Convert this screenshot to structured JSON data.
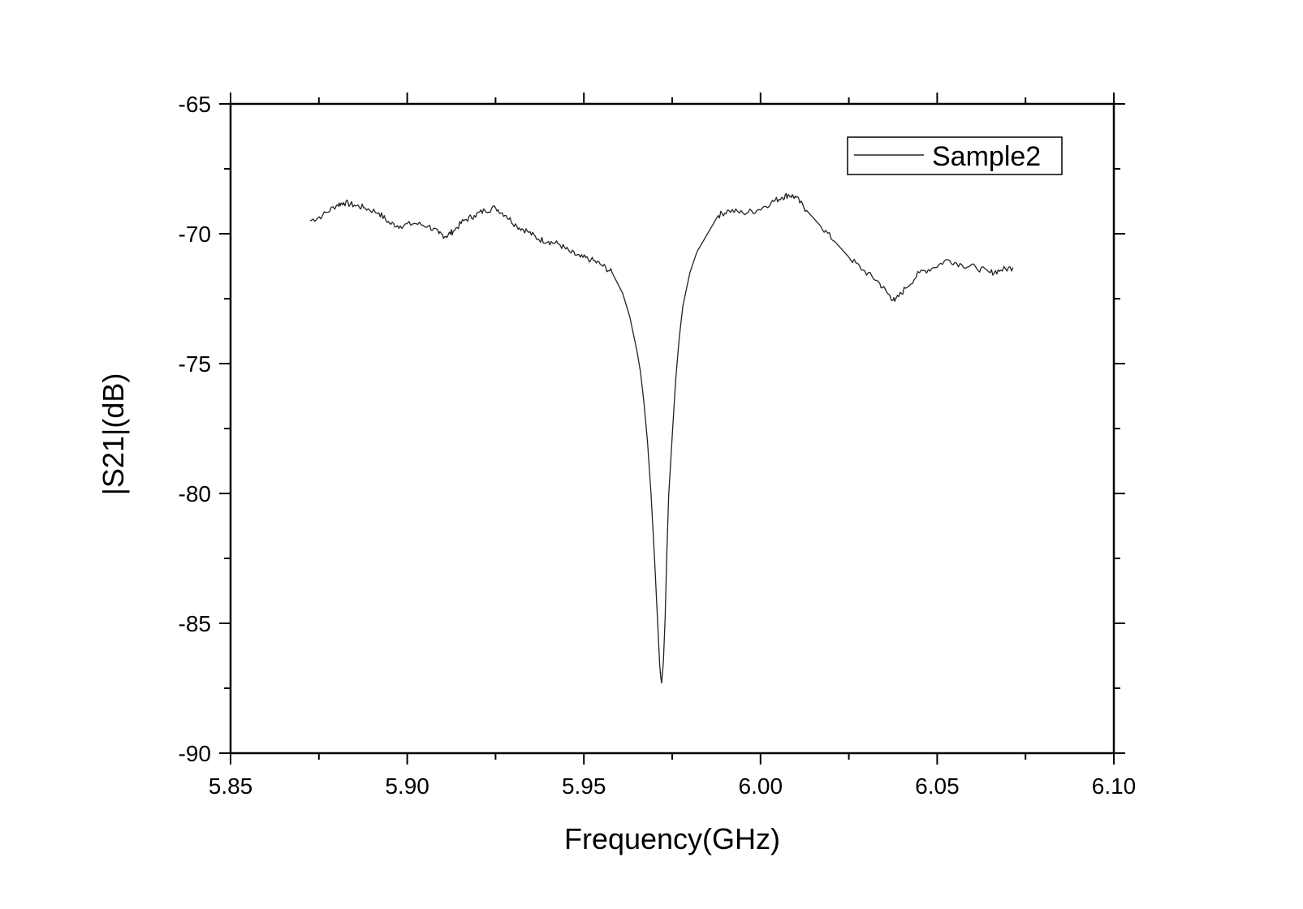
{
  "chart_data": {
    "type": "line",
    "title": "",
    "xlabel": "Frequency(GHz)",
    "ylabel": "|S21|(dB)",
    "xlim": [
      5.85,
      6.1
    ],
    "ylim": [
      -90,
      -65
    ],
    "xticks": [
      "5.85",
      "5.90",
      "5.95",
      "6.00",
      "6.05",
      "6.10"
    ],
    "yticks": [
      "-65",
      "-70",
      "-75",
      "-80",
      "-85",
      "-90"
    ],
    "legend_position": "top-right",
    "grid": false,
    "series": [
      {
        "name": "Sample2",
        "color": "#222222",
        "x": [
          5.8725,
          5.876,
          5.88,
          5.882,
          5.885,
          5.888,
          5.892,
          5.895,
          5.898,
          5.902,
          5.906,
          5.909,
          5.911,
          5.913,
          5.916,
          5.919,
          5.922,
          5.925,
          5.928,
          5.931,
          5.934,
          5.937,
          5.94,
          5.943,
          5.946,
          5.949,
          5.952,
          5.955,
          5.958,
          5.961,
          5.963,
          5.965,
          5.966,
          5.967,
          5.968,
          5.969,
          5.97,
          5.971,
          5.9715,
          5.972,
          5.9725,
          5.973,
          5.9735,
          5.974,
          5.975,
          5.976,
          5.977,
          5.978,
          5.98,
          5.982,
          5.985,
          5.988,
          5.991,
          5.995,
          5.999,
          6.003,
          6.006,
          6.008,
          6.01,
          6.013,
          6.017,
          6.021,
          6.025,
          6.029,
          6.033,
          6.036,
          6.038,
          6.041,
          6.045,
          6.049,
          6.053,
          6.057,
          6.061,
          6.065,
          6.068,
          6.0715
        ],
        "y": [
          -69.5,
          -69.3,
          -68.9,
          -68.8,
          -68.9,
          -69.0,
          -69.2,
          -69.6,
          -69.7,
          -69.6,
          -69.7,
          -70.0,
          -70.1,
          -69.9,
          -69.5,
          -69.3,
          -69.1,
          -69.0,
          -69.3,
          -69.7,
          -69.9,
          -70.2,
          -70.3,
          -70.4,
          -70.7,
          -70.9,
          -71.0,
          -71.2,
          -71.5,
          -72.3,
          -73.2,
          -74.5,
          -75.3,
          -76.5,
          -78.0,
          -80.0,
          -82.5,
          -85.3,
          -86.7,
          -87.3,
          -86.5,
          -84.8,
          -82.2,
          -80.1,
          -77.8,
          -75.6,
          -74.0,
          -72.8,
          -71.5,
          -70.7,
          -70.0,
          -69.3,
          -69.1,
          -69.2,
          -69.1,
          -68.8,
          -68.6,
          -68.5,
          -68.6,
          -69.1,
          -69.7,
          -70.3,
          -70.9,
          -71.4,
          -71.8,
          -72.3,
          -72.6,
          -72.1,
          -71.5,
          -71.3,
          -71.0,
          -71.2,
          -71.3,
          -71.5,
          -71.4,
          -71.3
        ]
      }
    ]
  }
}
